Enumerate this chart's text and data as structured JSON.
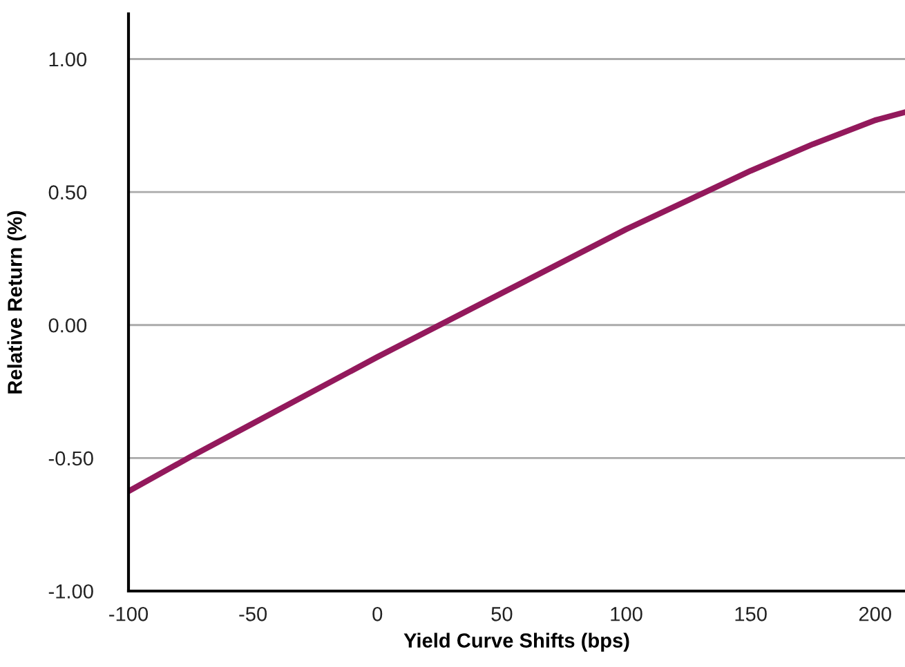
{
  "chart_data": {
    "type": "line",
    "xlabel": "Yield Curve Shifts (bps)",
    "ylabel": "Relative Return (%)",
    "series": [
      {
        "color": "#93195c",
        "x": [
          -100,
          -75,
          -50,
          -25,
          0,
          25,
          50,
          75,
          100,
          125,
          150,
          175,
          200,
          212
        ],
        "values": [
          -0.625,
          -0.495,
          -0.37,
          -0.245,
          -0.12,
          0.0,
          0.12,
          0.24,
          0.36,
          0.47,
          0.58,
          0.68,
          0.77,
          0.8
        ]
      }
    ],
    "xlim": [
      -100,
      212
    ],
    "ylim": [
      -1,
      1.17
    ],
    "xticks": [
      -100,
      -50,
      0,
      50,
      100,
      150,
      200
    ],
    "yticks": [
      {
        "value": -1,
        "label": "-1.00"
      },
      {
        "value": -0.5,
        "label": "-0.50"
      },
      {
        "value": 0,
        "label": "0.00"
      },
      {
        "value": 0.5,
        "label": "0.50"
      },
      {
        "value": 1,
        "label": "1.00"
      }
    ],
    "grid": "y",
    "legend": false,
    "marker": "none",
    "line_style": "solid"
  }
}
